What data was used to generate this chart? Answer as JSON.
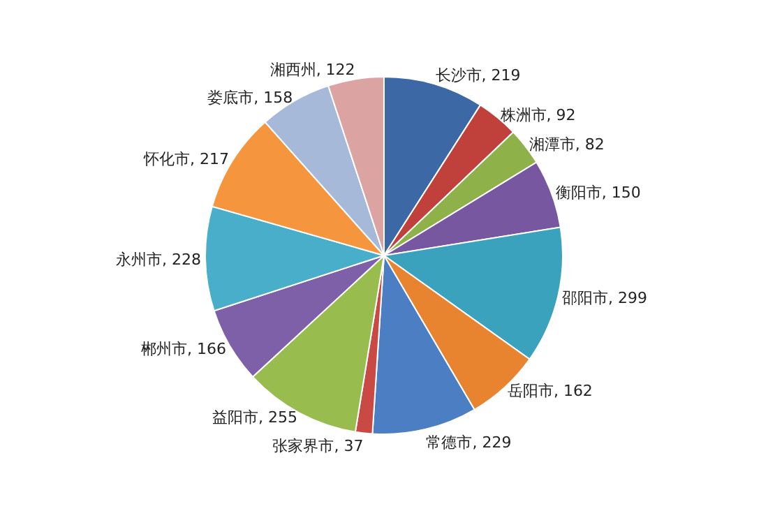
{
  "chart_data": {
    "type": "pie",
    "categories": [
      "长沙市",
      "株洲市",
      "湘潭市",
      "衡阳市",
      "邵阳市",
      "岳阳市",
      "常德市",
      "张家界市",
      "益阳市",
      "郴州市",
      "永州市",
      "怀化市",
      "娄底市",
      "湘西州"
    ],
    "values": [
      219,
      92,
      82,
      150,
      299,
      162,
      229,
      37,
      255,
      166,
      228,
      217,
      158,
      122
    ],
    "colors": [
      "#3c69a5",
      "#c0403c",
      "#8eb14a",
      "#7657a0",
      "#3aa2bc",
      "#e8832f",
      "#4b7ec2",
      "#c94a45",
      "#99bc4f",
      "#7d60a8",
      "#48aec9",
      "#f5963e",
      "#a6b9d9",
      "#dba3a2"
    ],
    "value_labels": [
      ", 219",
      ", 92",
      ", 82",
      ", 150",
      ", 299",
      ", 162",
      ", 229",
      ", 37",
      ", 255",
      ", 166",
      ", 228",
      ", 217",
      ", 158",
      ", 122"
    ]
  }
}
